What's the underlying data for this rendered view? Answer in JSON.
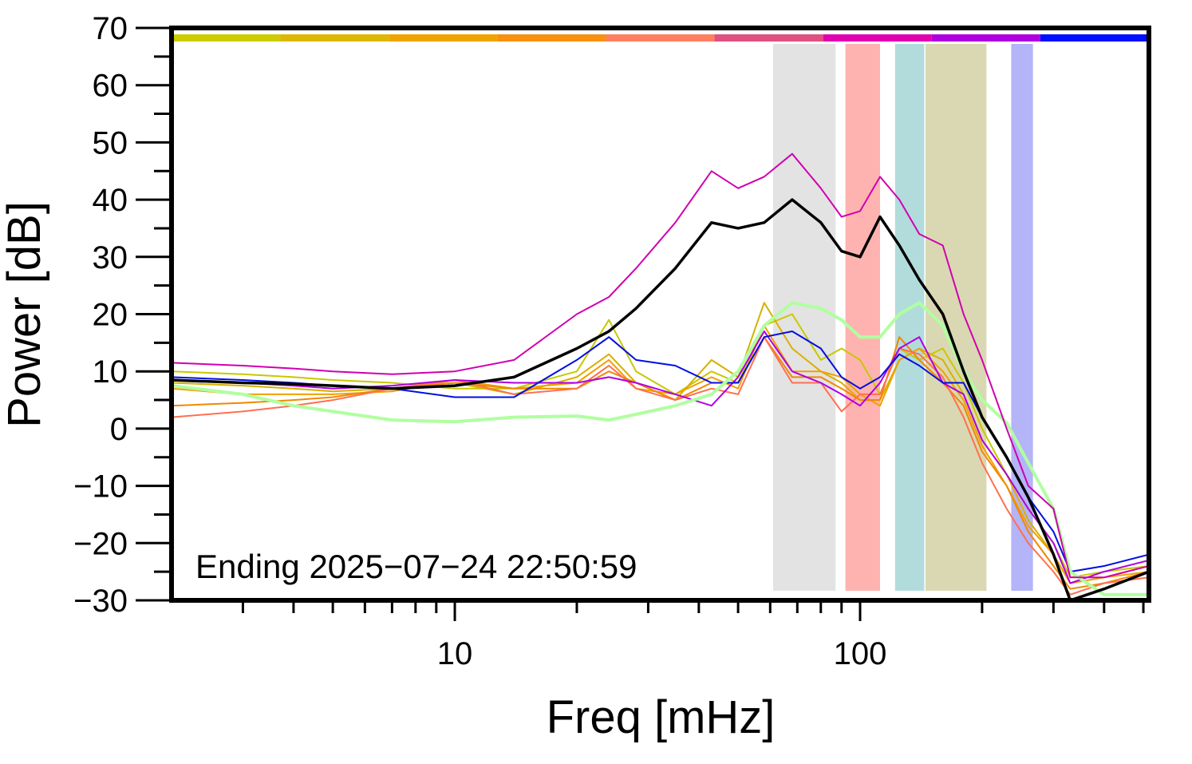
{
  "chart_data": {
    "type": "line",
    "xlabel": "Freq [mHz]",
    "ylabel": "Power [dB]",
    "annotation": "Ending 2025−07−24 22:50:59",
    "xscale": "log",
    "xlim": [
      2,
      516
    ],
    "ylim": [
      -30,
      70
    ],
    "xticks": [
      10,
      100
    ],
    "xminorticks": [
      3,
      4,
      5,
      6,
      7,
      8,
      9,
      20,
      30,
      40,
      50,
      60,
      70,
      80,
      90,
      200,
      300,
      400,
      500
    ],
    "yticks": [
      {
        "value": -30,
        "label": "−30"
      },
      {
        "value": -20,
        "label": "−20"
      },
      {
        "value": -10,
        "label": "−10"
      },
      0,
      10,
      20,
      30,
      40,
      50,
      60,
      70
    ],
    "yminorticks": [
      -25,
      -15,
      -5,
      5,
      15,
      25,
      35,
      45,
      55,
      65
    ],
    "color_bar": [
      "#cccc00",
      "#dcb800",
      "#f0a400",
      "#f89010",
      "#ff7f60",
      "#e05080",
      "#e000b0",
      "#b000e0",
      "#0010ff"
    ],
    "bands": [
      {
        "range": [
          61,
          87
        ],
        "color": "#e3e3e3"
      },
      {
        "range": [
          92,
          112
        ],
        "color": "#ffb3b0"
      },
      {
        "range": [
          122,
          144
        ],
        "color": "#b2dcdc"
      },
      {
        "range": [
          145,
          205
        ],
        "color": "#dad8b2"
      },
      {
        "range": [
          236,
          267
        ],
        "color": "#b4b4f8"
      }
    ],
    "x": [
      2,
      3,
      4,
      5,
      7,
      10,
      14,
      20,
      24,
      28,
      35,
      43,
      50,
      58,
      68,
      80,
      90,
      100,
      112,
      125,
      140,
      160,
      180,
      200,
      230,
      260,
      300,
      330,
      400,
      516
    ],
    "series": [
      {
        "color": "#c8c800",
        "width": 2,
        "values": [
          10,
          9.5,
          9,
          8.5,
          8,
          7,
          7,
          10,
          19,
          10,
          6,
          10,
          8,
          18,
          20,
          12,
          14,
          12,
          6,
          14,
          12,
          14,
          8,
          0,
          -8,
          -14,
          -20,
          -26,
          -25,
          -24
        ]
      },
      {
        "color": "#d8b000",
        "width": 2,
        "values": [
          8,
          7.5,
          7,
          6.5,
          7,
          8,
          6,
          9,
          13,
          8,
          5,
          12,
          9,
          22,
          14,
          10,
          8,
          5,
          5,
          12,
          14,
          12,
          6,
          -2,
          -8,
          -16,
          -22,
          -27,
          -26,
          -24
        ]
      },
      {
        "color": "#f0a000",
        "width": 2,
        "values": [
          7,
          6,
          6,
          6,
          6.5,
          8.5,
          7,
          8,
          12,
          7,
          6,
          9,
          7,
          18,
          10,
          10,
          9,
          6,
          4,
          12,
          14,
          10,
          5,
          -3,
          -10,
          -17,
          -22,
          -27,
          -26,
          -25
        ]
      },
      {
        "color": "#f08800",
        "width": 2,
        "values": [
          4,
          4.5,
          5,
          5.5,
          7,
          8,
          7,
          7,
          10,
          8,
          5,
          8,
          8,
          16,
          9,
          9,
          7,
          5,
          5,
          16,
          12,
          8,
          4,
          -4,
          -10,
          -18,
          -24,
          -28,
          -27,
          -25
        ]
      },
      {
        "color": "#ff7050",
        "width": 2,
        "values": [
          2,
          3,
          4,
          5,
          7,
          8.5,
          6,
          7,
          11,
          7,
          5,
          7,
          6,
          16,
          8,
          8,
          3,
          6,
          6,
          14,
          13,
          9,
          2,
          -6,
          -14,
          -20,
          -25,
          -29,
          -27,
          -26
        ]
      },
      {
        "color": "#b000e0",
        "width": 2,
        "values": [
          8.5,
          8,
          7.5,
          7,
          7.5,
          8.5,
          8,
          8,
          9,
          8,
          6,
          4,
          9,
          17,
          10,
          8,
          6,
          4,
          8,
          14,
          16,
          8,
          6,
          -2,
          -8,
          -14,
          -20,
          -27,
          -25,
          -23
        ]
      },
      {
        "color": "#0010e0",
        "width": 2,
        "values": [
          9,
          8.5,
          8,
          7.5,
          7,
          5.5,
          5.5,
          12,
          16,
          12,
          11,
          8,
          8,
          16,
          17,
          14,
          9,
          7,
          9,
          13,
          11,
          8,
          8,
          2,
          -5,
          -12,
          -18,
          -25,
          -24,
          -22
        ]
      },
      {
        "color": "#b0ffa0",
        "width": 4,
        "values": [
          7.5,
          6,
          4,
          3,
          1.5,
          1.2,
          2,
          2.2,
          1.5,
          2.5,
          4,
          6,
          10,
          18,
          22,
          21,
          19,
          16,
          16,
          20,
          22,
          18,
          10,
          5,
          1,
          -6,
          -14,
          -25,
          -29,
          -29
        ]
      },
      {
        "color": "#d000b0",
        "width": 2,
        "values": [
          11.5,
          11,
          10.5,
          10,
          9.5,
          10,
          12,
          20,
          23,
          28,
          36,
          45,
          42,
          44,
          48,
          42,
          37,
          38,
          44,
          40,
          34,
          32,
          20,
          12,
          0,
          -10,
          -14,
          -26,
          -26,
          -24
        ]
      },
      {
        "color": "#000000",
        "width": 3.5,
        "values": [
          8.5,
          8,
          7.8,
          7.5,
          7,
          7.5,
          9,
          14,
          17,
          21,
          28,
          36,
          35,
          36,
          40,
          36,
          31,
          30,
          37,
          32,
          26,
          20,
          10,
          2,
          -5,
          -12,
          -22,
          -30,
          -28,
          -25
        ]
      }
    ]
  }
}
